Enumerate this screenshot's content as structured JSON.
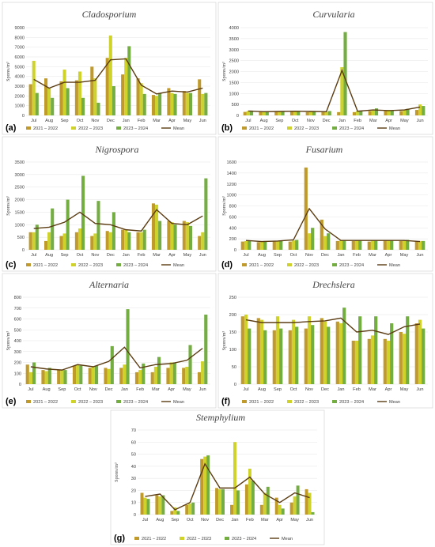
{
  "colors": {
    "s2021": "#c09a2c",
    "s2022": "#cfd22a",
    "s2023": "#74ad42",
    "mean": "#5b3c12",
    "under": "#eb7c3a"
  },
  "legend": [
    "2021 – 2022",
    "2022 – 2023",
    "2023 – 2024",
    "Mean"
  ],
  "chart_data": [
    {
      "type": "bar",
      "letter": "(a)",
      "title": "Cladosporium",
      "ylabel": "Spores/m³",
      "categories": [
        "Jul",
        "Aug",
        "Sep",
        "Oct",
        "Nov",
        "Dec",
        "Jan",
        "Feb",
        "Mar",
        "Apr",
        "May",
        "Jun"
      ],
      "ylim": [
        0,
        9000
      ],
      "yticks": [
        0,
        1000,
        2000,
        3000,
        4000,
        5000,
        6000,
        7000,
        8000,
        9000
      ],
      "series": [
        {
          "name": "2021 – 2022",
          "values": [
            3200,
            3800,
            3500,
            3600,
            5000,
            5900,
            4200,
            3800,
            2100,
            2800,
            2500,
            3700
          ]
        },
        {
          "name": "2022 – 2023",
          "values": [
            5600,
            2800,
            4700,
            4500,
            3800,
            8200,
            5900,
            3300,
            2000,
            2300,
            2300,
            2200
          ]
        },
        {
          "name": "2023 – 2024",
          "values": [
            2300,
            1800,
            2800,
            1800,
            1300,
            3000,
            7100,
            2200,
            2300,
            2200,
            2300,
            2300
          ]
        }
      ],
      "mean": [
        3700,
        2800,
        3400,
        3400,
        3600,
        5700,
        5800,
        3100,
        2200,
        2500,
        2400,
        2800
      ]
    },
    {
      "type": "bar",
      "letter": "(b)",
      "title": "Curvularia",
      "ylabel": "Spores/m³",
      "categories": [
        "Jul",
        "Aug",
        "Sep",
        "Oct",
        "Nov",
        "Dec",
        "Jan",
        "Feb",
        "Mar",
        "Apr",
        "May",
        "Jun"
      ],
      "ylim": [
        0,
        4000
      ],
      "yticks": [
        0,
        500,
        1000,
        1500,
        2000,
        2500,
        3000,
        3500,
        4000
      ],
      "series": [
        {
          "name": "2021 – 2022",
          "values": [
            160,
            160,
            170,
            170,
            150,
            150,
            150,
            150,
            200,
            200,
            200,
            250
          ]
        },
        {
          "name": "2022 – 2023",
          "values": [
            200,
            170,
            200,
            200,
            200,
            170,
            2200,
            200,
            220,
            250,
            250,
            500
          ]
        },
        {
          "name": "2023 – 2024",
          "values": [
            220,
            180,
            190,
            200,
            200,
            200,
            3800,
            220,
            320,
            220,
            300,
            430
          ]
        }
      ],
      "mean": [
        200,
        170,
        180,
        190,
        180,
        170,
        2050,
        190,
        250,
        220,
        250,
        380
      ]
    },
    {
      "type": "bar",
      "letter": "(c)",
      "title": "Nigrospora",
      "ylabel": "Spores/m³",
      "categories": [
        "Jul",
        "Aug",
        "Sep",
        "Oct",
        "Nov",
        "Dec",
        "Jan",
        "Feb",
        "Mar",
        "Apr",
        "May",
        "Jun"
      ],
      "ylim": [
        0,
        3500
      ],
      "yticks": [
        0,
        500,
        1000,
        1500,
        2000,
        2500,
        3000,
        3500
      ],
      "series": [
        {
          "name": "2021 – 2022",
          "values": [
            700,
            350,
            550,
            700,
            550,
            750,
            800,
            700,
            1850,
            1150,
            1150,
            550
          ]
        },
        {
          "name": "2022 – 2023",
          "values": [
            700,
            700,
            650,
            850,
            650,
            700,
            800,
            700,
            1800,
            1100,
            1100,
            700
          ]
        },
        {
          "name": "2023 – 2024",
          "values": [
            1000,
            1650,
            2000,
            2950,
            1950,
            1500,
            700,
            800,
            1150,
            1000,
            950,
            2850
          ]
        }
      ],
      "mean": [
        850,
        900,
        1100,
        1500,
        1050,
        1000,
        800,
        750,
        1600,
        1050,
        1000,
        1350
      ]
    },
    {
      "type": "bar",
      "letter": "(d)",
      "title": "Fusarium",
      "ylabel": "Spores/m³",
      "categories": [
        "Jul",
        "Aug",
        "Sep",
        "Oct",
        "Nov",
        "Dec",
        "Jan",
        "Feb",
        "Mar",
        "Apr",
        "May",
        "Jun"
      ],
      "ylim": [
        0,
        1600
      ],
      "yticks": [
        0,
        200,
        400,
        600,
        800,
        1000,
        1200,
        1400,
        1600
      ],
      "series": [
        {
          "name": "2021 – 2022",
          "values": [
            150,
            140,
            150,
            150,
            1500,
            550,
            160,
            160,
            150,
            170,
            160,
            150
          ]
        },
        {
          "name": "2022 – 2023",
          "values": [
            160,
            150,
            160,
            170,
            300,
            250,
            170,
            170,
            170,
            180,
            170,
            160
          ]
        },
        {
          "name": "2023 – 2024",
          "values": [
            170,
            160,
            170,
            180,
            400,
            300,
            180,
            170,
            180,
            180,
            180,
            160
          ]
        }
      ],
      "mean": [
        170,
        150,
        160,
        180,
        750,
        380,
        170,
        170,
        170,
        170,
        170,
        150
      ]
    },
    {
      "type": "bar",
      "letter": "(e)",
      "title": "Alternaria",
      "ylabel": "Spores/m³",
      "categories": [
        "Jul",
        "Aug",
        "Sep",
        "Oct",
        "Nov",
        "Dec",
        "Jan",
        "Feb",
        "Mar",
        "Apr",
        "May",
        "Jun"
      ],
      "ylim": [
        0,
        800
      ],
      "yticks": [
        0,
        100,
        200,
        300,
        400,
        500,
        600,
        700,
        800
      ],
      "series": [
        {
          "name": "2021 – 2022",
          "values": [
            180,
            130,
            130,
            170,
            150,
            150,
            150,
            110,
            110,
            150,
            150,
            110
          ]
        },
        {
          "name": "2022 – 2023",
          "values": [
            110,
            120,
            130,
            180,
            160,
            140,
            180,
            130,
            160,
            200,
            160,
            210
          ]
        },
        {
          "name": "2023 – 2024",
          "values": [
            200,
            150,
            130,
            170,
            170,
            350,
            690,
            190,
            250,
            200,
            360,
            640
          ]
        }
      ],
      "mean": [
        160,
        140,
        130,
        180,
        160,
        210,
        340,
        150,
        180,
        190,
        220,
        330
      ]
    },
    {
      "type": "bar",
      "letter": "(f)",
      "title": "Drechslera",
      "ylabel": "Spores/m³",
      "categories": [
        "Jul",
        "Aug",
        "Sep",
        "Oct",
        "Nov",
        "Dec",
        "Jan",
        "Feb",
        "Mar",
        "Apr",
        "May",
        "Jun"
      ],
      "ylim": [
        0,
        250
      ],
      "yticks": [
        0,
        50,
        100,
        150,
        200,
        250
      ],
      "series": [
        {
          "name": "2021 – 2022",
          "values": [
            195,
            190,
            155,
            155,
            160,
            190,
            180,
            125,
            130,
            130,
            150,
            175
          ]
        },
        {
          "name": "2022 – 2023",
          "values": [
            200,
            185,
            195,
            185,
            195,
            180,
            175,
            125,
            140,
            125,
            145,
            185
          ]
        },
        {
          "name": "2023 – 2024",
          "values": [
            160,
            155,
            160,
            165,
            170,
            165,
            220,
            195,
            195,
            175,
            195,
            160
          ]
        }
      ],
      "mean": [
        185,
        177,
        177,
        177,
        180,
        182,
        190,
        150,
        155,
        143,
        165,
        173
      ]
    },
    {
      "type": "bar",
      "letter": "(g)",
      "title": "Stemphylium",
      "ylabel": "Spores/m³",
      "categories": [
        "Jul",
        "Aug",
        "Sep",
        "Oct",
        "Nov",
        "Dec",
        "Jan",
        "Feb",
        "Mar",
        "Apr",
        "May",
        "Jun"
      ],
      "ylim": [
        0,
        70
      ],
      "yticks": [
        0,
        10,
        20,
        30,
        40,
        50,
        60,
        70
      ],
      "series": [
        {
          "name": "2021 – 2022",
          "values": [
            18,
            16,
            3,
            8,
            46,
            22,
            8,
            25,
            8,
            14,
            10,
            21
          ]
        },
        {
          "name": "2022 – 2023",
          "values": [
            14,
            15,
            6,
            9,
            48,
            21,
            60,
            38,
            18,
            8,
            15,
            18
          ]
        },
        {
          "name": "2023 – 2024",
          "values": [
            13,
            16,
            3,
            10,
            49,
            21,
            20,
            28,
            23,
            5,
            24,
            2
          ]
        }
      ],
      "mean": [
        15,
        17,
        4,
        10,
        42,
        22,
        22,
        31,
        17,
        10,
        18,
        14
      ]
    }
  ]
}
